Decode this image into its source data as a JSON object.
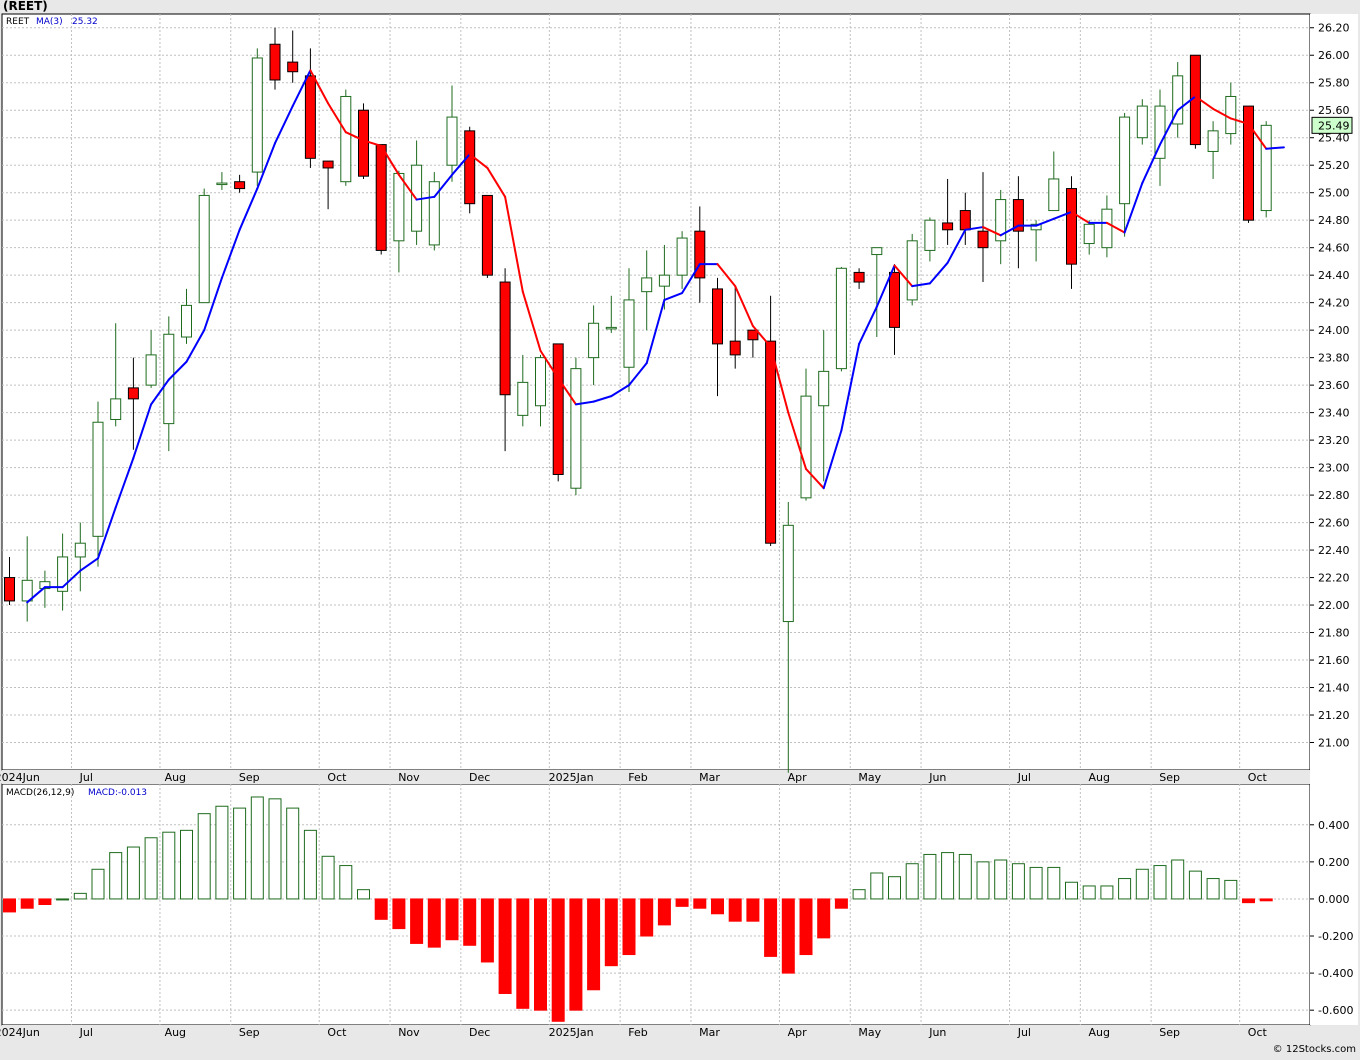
{
  "header": {
    "title": "(REET)",
    "price_legend": {
      "symbol": "REET",
      "ma_label": "MA(3)",
      "ma_value": "25.32"
    },
    "macd_legend": {
      "label": "MACD(26,12,9)",
      "value_label": "MACD:-0.013"
    },
    "last_price_label": "25.49",
    "copyright": "© 12Stocks.com"
  },
  "colors": {
    "up_outline": "#1e6b1e",
    "down_fill": "#ff0000",
    "ma_up": "#0000ff",
    "ma_down": "#ff0000",
    "grid": "#c0c0c0",
    "background": "#ffffff",
    "frame": "#e8e8e8",
    "price_tag": "#ccffcc"
  },
  "chart_data": [
    {
      "type": "candlestick",
      "symbol": "REET",
      "ylim": [
        20.8,
        26.3
      ],
      "yticks": [
        "21.00",
        "21.20",
        "21.40",
        "21.60",
        "21.80",
        "22.00",
        "22.20",
        "22.40",
        "22.60",
        "22.80",
        "23.00",
        "23.20",
        "23.40",
        "23.60",
        "23.80",
        "24.00",
        "24.20",
        "24.40",
        "24.60",
        "24.80",
        "25.00",
        "25.20",
        "25.40",
        "25.60",
        "25.80",
        "26.00",
        "26.20"
      ],
      "month_labels": [
        {
          "label": "2024Jun",
          "week": -0.5
        },
        {
          "label": "Jul",
          "week": 4.3
        },
        {
          "label": "Aug",
          "week": 9.1
        },
        {
          "label": "Sep",
          "week": 13.3
        },
        {
          "label": "Oct",
          "week": 18.3
        },
        {
          "label": "Nov",
          "week": 22.3
        },
        {
          "label": "Dec",
          "week": 26.3
        },
        {
          "label": "2025Jan",
          "week": 30.8
        },
        {
          "label": "Feb",
          "week": 35.3
        },
        {
          "label": "Mar",
          "week": 39.3
        },
        {
          "label": "Apr",
          "week": 44.3
        },
        {
          "label": "May",
          "week": 48.3
        },
        {
          "label": "Jun",
          "week": 52.3
        },
        {
          "label": "Jul",
          "week": 57.3
        },
        {
          "label": "Aug",
          "week": 61.3
        },
        {
          "label": "Sep",
          "week": 65.3
        },
        {
          "label": "Oct",
          "week": 70.3
        }
      ],
      "month_gridlines": [
        4,
        9,
        13,
        18,
        22,
        26,
        31,
        35,
        39,
        44,
        48,
        52,
        57,
        61,
        65,
        70
      ],
      "candles": [
        {
          "o": 22.2,
          "h": 22.35,
          "l": 22.0,
          "c": 22.03
        },
        {
          "o": 22.03,
          "h": 22.5,
          "l": 21.88,
          "c": 22.18
        },
        {
          "o": 22.12,
          "h": 22.25,
          "l": 21.98,
          "c": 22.17
        },
        {
          "o": 22.1,
          "h": 22.52,
          "l": 21.96,
          "c": 22.35
        },
        {
          "o": 22.35,
          "h": 22.6,
          "l": 22.1,
          "c": 22.45
        },
        {
          "o": 22.5,
          "h": 23.48,
          "l": 22.28,
          "c": 23.33
        },
        {
          "o": 23.35,
          "h": 24.05,
          "l": 23.3,
          "c": 23.5
        },
        {
          "o": 23.58,
          "h": 23.8,
          "l": 23.13,
          "c": 23.5
        },
        {
          "o": 23.6,
          "h": 24.0,
          "l": 23.58,
          "c": 23.82
        },
        {
          "o": 23.32,
          "h": 24.1,
          "l": 23.12,
          "c": 23.97
        },
        {
          "o": 23.95,
          "h": 24.3,
          "l": 23.9,
          "c": 24.18
        },
        {
          "o": 24.2,
          "h": 25.03,
          "l": 24.2,
          "c": 24.98
        },
        {
          "o": 25.07,
          "h": 25.15,
          "l": 25.02,
          "c": 25.07
        },
        {
          "o": 25.08,
          "h": 25.13,
          "l": 25.0,
          "c": 25.03
        },
        {
          "o": 25.15,
          "h": 26.05,
          "l": 25.05,
          "c": 25.98
        },
        {
          "o": 26.08,
          "h": 26.2,
          "l": 25.75,
          "c": 25.82
        },
        {
          "o": 25.95,
          "h": 26.18,
          "l": 25.8,
          "c": 25.88
        },
        {
          "o": 25.85,
          "h": 26.05,
          "l": 25.18,
          "c": 25.25
        },
        {
          "o": 25.23,
          "h": 25.23,
          "l": 24.88,
          "c": 25.18
        },
        {
          "o": 25.08,
          "h": 25.75,
          "l": 25.05,
          "c": 25.7
        },
        {
          "o": 25.6,
          "h": 25.65,
          "l": 25.1,
          "c": 25.12
        },
        {
          "o": 25.35,
          "h": 25.35,
          "l": 24.55,
          "c": 24.58
        },
        {
          "o": 24.65,
          "h": 25.16,
          "l": 24.42,
          "c": 25.14
        },
        {
          "o": 24.72,
          "h": 25.38,
          "l": 24.62,
          "c": 25.2
        },
        {
          "o": 24.62,
          "h": 25.15,
          "l": 24.58,
          "c": 25.08
        },
        {
          "o": 25.2,
          "h": 25.78,
          "l": 25.08,
          "c": 25.55
        },
        {
          "o": 25.45,
          "h": 25.48,
          "l": 24.85,
          "c": 24.92
        },
        {
          "o": 24.98,
          "h": 24.98,
          "l": 24.38,
          "c": 24.4
        },
        {
          "o": 24.35,
          "h": 24.45,
          "l": 23.12,
          "c": 23.53
        },
        {
          "o": 23.38,
          "h": 23.82,
          "l": 23.3,
          "c": 23.62
        },
        {
          "o": 23.45,
          "h": 23.82,
          "l": 23.3,
          "c": 23.8
        },
        {
          "o": 23.9,
          "h": 23.9,
          "l": 22.9,
          "c": 22.95
        },
        {
          "o": 22.85,
          "h": 23.8,
          "l": 22.8,
          "c": 23.72
        },
        {
          "o": 23.8,
          "h": 24.18,
          "l": 23.6,
          "c": 24.05
        },
        {
          "o": 24.02,
          "h": 24.25,
          "l": 23.98,
          "c": 24.02
        },
        {
          "o": 23.73,
          "h": 24.45,
          "l": 23.55,
          "c": 24.22
        },
        {
          "o": 24.28,
          "h": 24.58,
          "l": 24.0,
          "c": 24.38
        },
        {
          "o": 24.32,
          "h": 24.62,
          "l": 24.15,
          "c": 24.4
        },
        {
          "o": 24.4,
          "h": 24.72,
          "l": 24.3,
          "c": 24.67
        },
        {
          "o": 24.72,
          "h": 24.9,
          "l": 24.2,
          "c": 24.38
        },
        {
          "o": 24.3,
          "h": 24.38,
          "l": 23.52,
          "c": 23.9
        },
        {
          "o": 23.92,
          "h": 24.32,
          "l": 23.72,
          "c": 23.82
        },
        {
          "o": 24.0,
          "h": 24.0,
          "l": 23.8,
          "c": 23.93
        },
        {
          "o": 23.92,
          "h": 24.25,
          "l": 22.43,
          "c": 22.45
        },
        {
          "o": 21.88,
          "h": 22.75,
          "l": 20.78,
          "c": 22.58
        },
        {
          "o": 22.78,
          "h": 23.72,
          "l": 22.76,
          "c": 23.52
        },
        {
          "o": 23.45,
          "h": 24.0,
          "l": 22.9,
          "c": 23.7
        },
        {
          "o": 23.72,
          "h": 24.46,
          "l": 23.7,
          "c": 24.45
        },
        {
          "o": 24.42,
          "h": 24.45,
          "l": 24.3,
          "c": 24.35
        },
        {
          "o": 24.55,
          "h": 24.6,
          "l": 23.95,
          "c": 24.6
        },
        {
          "o": 24.42,
          "h": 24.48,
          "l": 23.82,
          "c": 24.02
        },
        {
          "o": 24.22,
          "h": 24.7,
          "l": 24.18,
          "c": 24.65
        },
        {
          "o": 24.58,
          "h": 24.82,
          "l": 24.5,
          "c": 24.8
        },
        {
          "o": 24.78,
          "h": 25.1,
          "l": 24.62,
          "c": 24.73
        },
        {
          "o": 24.87,
          "h": 25.0,
          "l": 24.62,
          "c": 24.73
        },
        {
          "o": 24.72,
          "h": 25.15,
          "l": 24.35,
          "c": 24.6
        },
        {
          "o": 24.65,
          "h": 25.02,
          "l": 24.48,
          "c": 24.95
        },
        {
          "o": 24.95,
          "h": 25.12,
          "l": 24.45,
          "c": 24.72
        },
        {
          "o": 24.73,
          "h": 24.8,
          "l": 24.5,
          "c": 24.77
        },
        {
          "o": 24.87,
          "h": 25.3,
          "l": 24.88,
          "c": 25.1
        },
        {
          "o": 25.03,
          "h": 25.12,
          "l": 24.3,
          "c": 24.48
        },
        {
          "o": 24.63,
          "h": 24.8,
          "l": 24.55,
          "c": 24.77
        },
        {
          "o": 24.6,
          "h": 24.98,
          "l": 24.53,
          "c": 24.88
        },
        {
          "o": 24.92,
          "h": 25.58,
          "l": 24.68,
          "c": 25.55
        },
        {
          "o": 25.4,
          "h": 25.68,
          "l": 25.35,
          "c": 25.63
        },
        {
          "o": 25.25,
          "h": 25.75,
          "l": 25.05,
          "c": 25.63
        },
        {
          "o": 25.5,
          "h": 25.95,
          "l": 25.4,
          "c": 25.85
        },
        {
          "o": 26.0,
          "h": 26.0,
          "l": 25.32,
          "c": 25.35
        },
        {
          "o": 25.3,
          "h": 25.52,
          "l": 25.1,
          "c": 25.45
        },
        {
          "o": 25.43,
          "h": 25.8,
          "l": 25.35,
          "c": 25.7
        },
        {
          "o": 25.63,
          "h": 25.63,
          "l": 24.78,
          "c": 24.8
        },
        {
          "o": 24.87,
          "h": 25.52,
          "l": 24.82,
          "c": 25.49
        }
      ],
      "ma3": [
        22.02,
        22.13,
        22.13,
        22.25,
        22.34,
        22.71,
        23.07,
        23.46,
        23.64,
        23.77,
        24.0,
        24.38,
        24.73,
        25.03,
        25.36,
        25.63,
        25.89,
        25.65,
        25.44,
        25.38,
        25.34,
        25.13,
        24.95,
        24.97,
        25.13,
        25.28,
        25.18,
        24.97,
        24.28,
        23.85,
        23.65,
        23.46,
        23.48,
        23.52,
        23.6,
        23.76,
        24.22,
        24.27,
        24.48,
        24.48,
        24.32,
        24.03,
        23.88,
        23.4,
        22.99,
        22.85,
        23.27,
        23.9,
        24.17,
        24.47,
        24.32,
        24.34,
        24.49,
        24.73,
        24.75,
        24.69,
        24.76,
        24.76,
        24.81,
        24.86,
        24.78,
        24.78,
        24.71,
        25.07,
        25.35,
        25.6,
        25.7,
        25.61,
        25.54,
        25.5,
        25.32,
        25.33
      ],
      "last_price": 25.49
    },
    {
      "type": "bar",
      "name": "MACD(26,12,9)",
      "ylim": [
        -0.68,
        0.62
      ],
      "yticks": [
        "-0.600",
        "-0.400",
        "-0.200",
        "0.000",
        "0.200",
        "0.400"
      ],
      "values": [
        -0.07,
        -0.05,
        -0.03,
        0.0,
        0.03,
        0.16,
        0.25,
        0.28,
        0.33,
        0.36,
        0.37,
        0.46,
        0.5,
        0.49,
        0.55,
        0.54,
        0.49,
        0.37,
        0.23,
        0.18,
        0.05,
        -0.11,
        -0.16,
        -0.24,
        -0.26,
        -0.22,
        -0.25,
        -0.34,
        -0.51,
        -0.59,
        -0.6,
        -0.66,
        -0.6,
        -0.49,
        -0.36,
        -0.3,
        -0.2,
        -0.14,
        -0.04,
        -0.05,
        -0.08,
        -0.12,
        -0.12,
        -0.31,
        -0.4,
        -0.3,
        -0.21,
        -0.05,
        0.05,
        0.14,
        0.12,
        0.19,
        0.24,
        0.25,
        0.24,
        0.2,
        0.21,
        0.19,
        0.17,
        0.17,
        0.09,
        0.07,
        0.07,
        0.11,
        0.16,
        0.18,
        0.21,
        0.15,
        0.11,
        0.1,
        -0.02,
        -0.01
      ],
      "last_value": -0.013
    }
  ]
}
